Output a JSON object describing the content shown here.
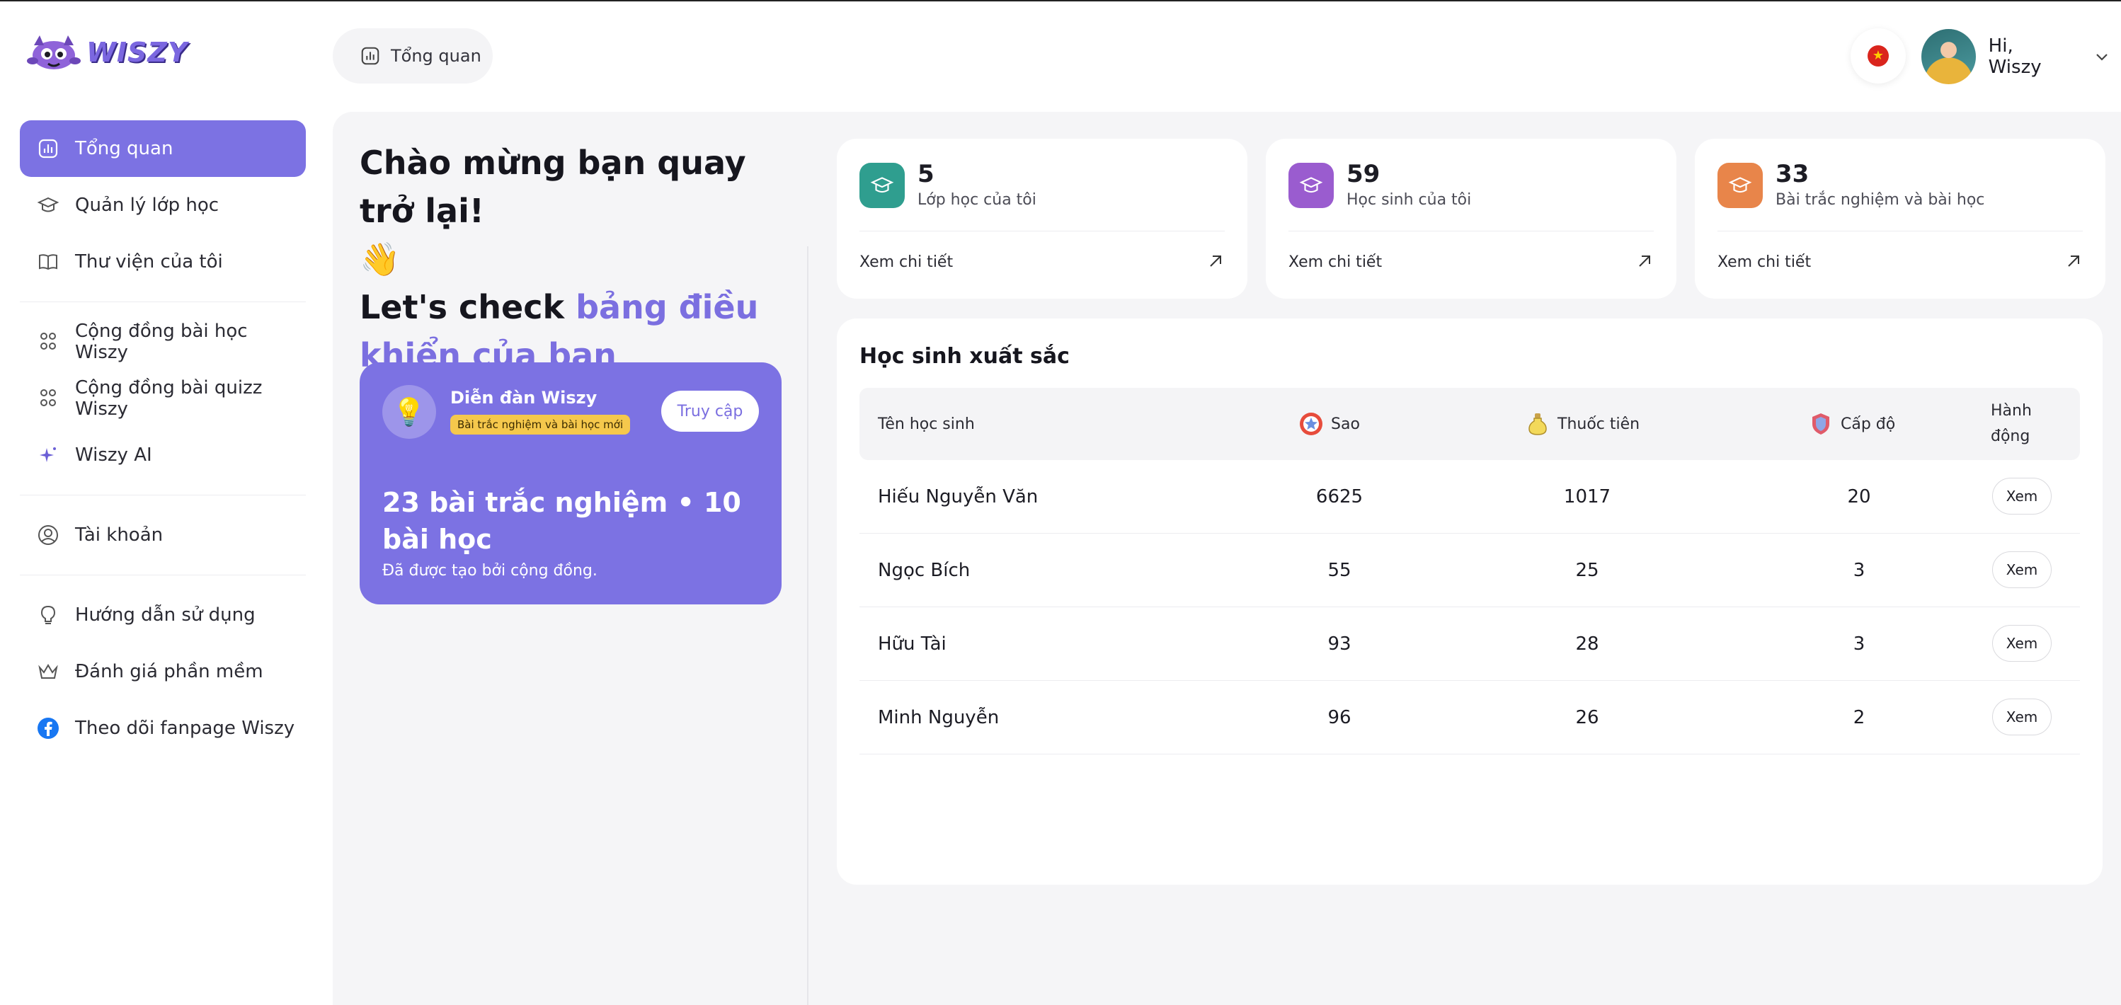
{
  "app": {
    "brand": "WISZY"
  },
  "header": {
    "breadcrumb": "Tổng quan",
    "greeting": "Hi, Wiszy"
  },
  "sidebar": {
    "items": [
      {
        "label": "Tổng quan",
        "icon": "chart-icon",
        "active": true
      },
      {
        "label": "Quản lý lớp học",
        "icon": "graduation-cap-icon"
      },
      {
        "label": "Thư viện của tôi",
        "icon": "book-icon"
      },
      {
        "label": "Cộng đồng bài học Wiszy",
        "icon": "community-icon"
      },
      {
        "label": "Cộng đồng bài quizz Wiszy",
        "icon": "community-icon"
      },
      {
        "label": "Wiszy AI",
        "icon": "sparkle-icon"
      },
      {
        "label": "Tài khoản",
        "icon": "user-circle-icon"
      },
      {
        "label": "Hướng dẫn sử dụng",
        "icon": "lightbulb-icon"
      },
      {
        "label": "Đánh giá phần mềm",
        "icon": "crown-icon"
      },
      {
        "label": "Theo dõi fanpage Wiszy",
        "icon": "facebook-icon"
      }
    ]
  },
  "welcome": {
    "line1": "Chào mừng bạn quay trở lại!",
    "emoji": "👋",
    "line2_plain": "Let's check ",
    "line2_accent": "bảng điều khiển của bạn"
  },
  "forum": {
    "title": "Diễn đàn Wiszy",
    "badge": "Bài trắc nghiệm và bài học mới",
    "button": "Truy cập",
    "headline": "23 bài trắc nghiệm • 10 bài học",
    "subtitle": "Đã được tạo bởi cộng đồng."
  },
  "stats": [
    {
      "value": "5",
      "label": "Lớp học của tôi",
      "link": "Xem chi tiết",
      "color": "#2f9e8f"
    },
    {
      "value": "59",
      "label": "Học sinh của tôi",
      "link": "Xem chi tiết",
      "color": "#9a5ccf"
    },
    {
      "value": "33",
      "label": "Bài trắc nghiệm và bài học",
      "link": "Xem chi tiết",
      "color": "#e8854a"
    }
  ],
  "top_students": {
    "title": "Học sinh xuất sắc",
    "columns": {
      "name": "Tên học sinh",
      "stars": "Sao",
      "potions": "Thuốc tiên",
      "level": "Cấp độ",
      "action_1": "Hành",
      "action_2": "động"
    },
    "view_label": "Xem",
    "rows": [
      {
        "name": "Hiếu Nguyễn Văn",
        "stars": "6625",
        "potions": "1017",
        "level": "20"
      },
      {
        "name": "Ngọc Bích",
        "stars": "55",
        "potions": "25",
        "level": "3"
      },
      {
        "name": "Hữu Tài",
        "stars": "93",
        "potions": "28",
        "level": "3"
      },
      {
        "name": "Minh Nguyễn",
        "stars": "96",
        "potions": "26",
        "level": "2"
      }
    ]
  },
  "colors": {
    "accent": "#7c72e3",
    "background": "#f5f5f7"
  }
}
